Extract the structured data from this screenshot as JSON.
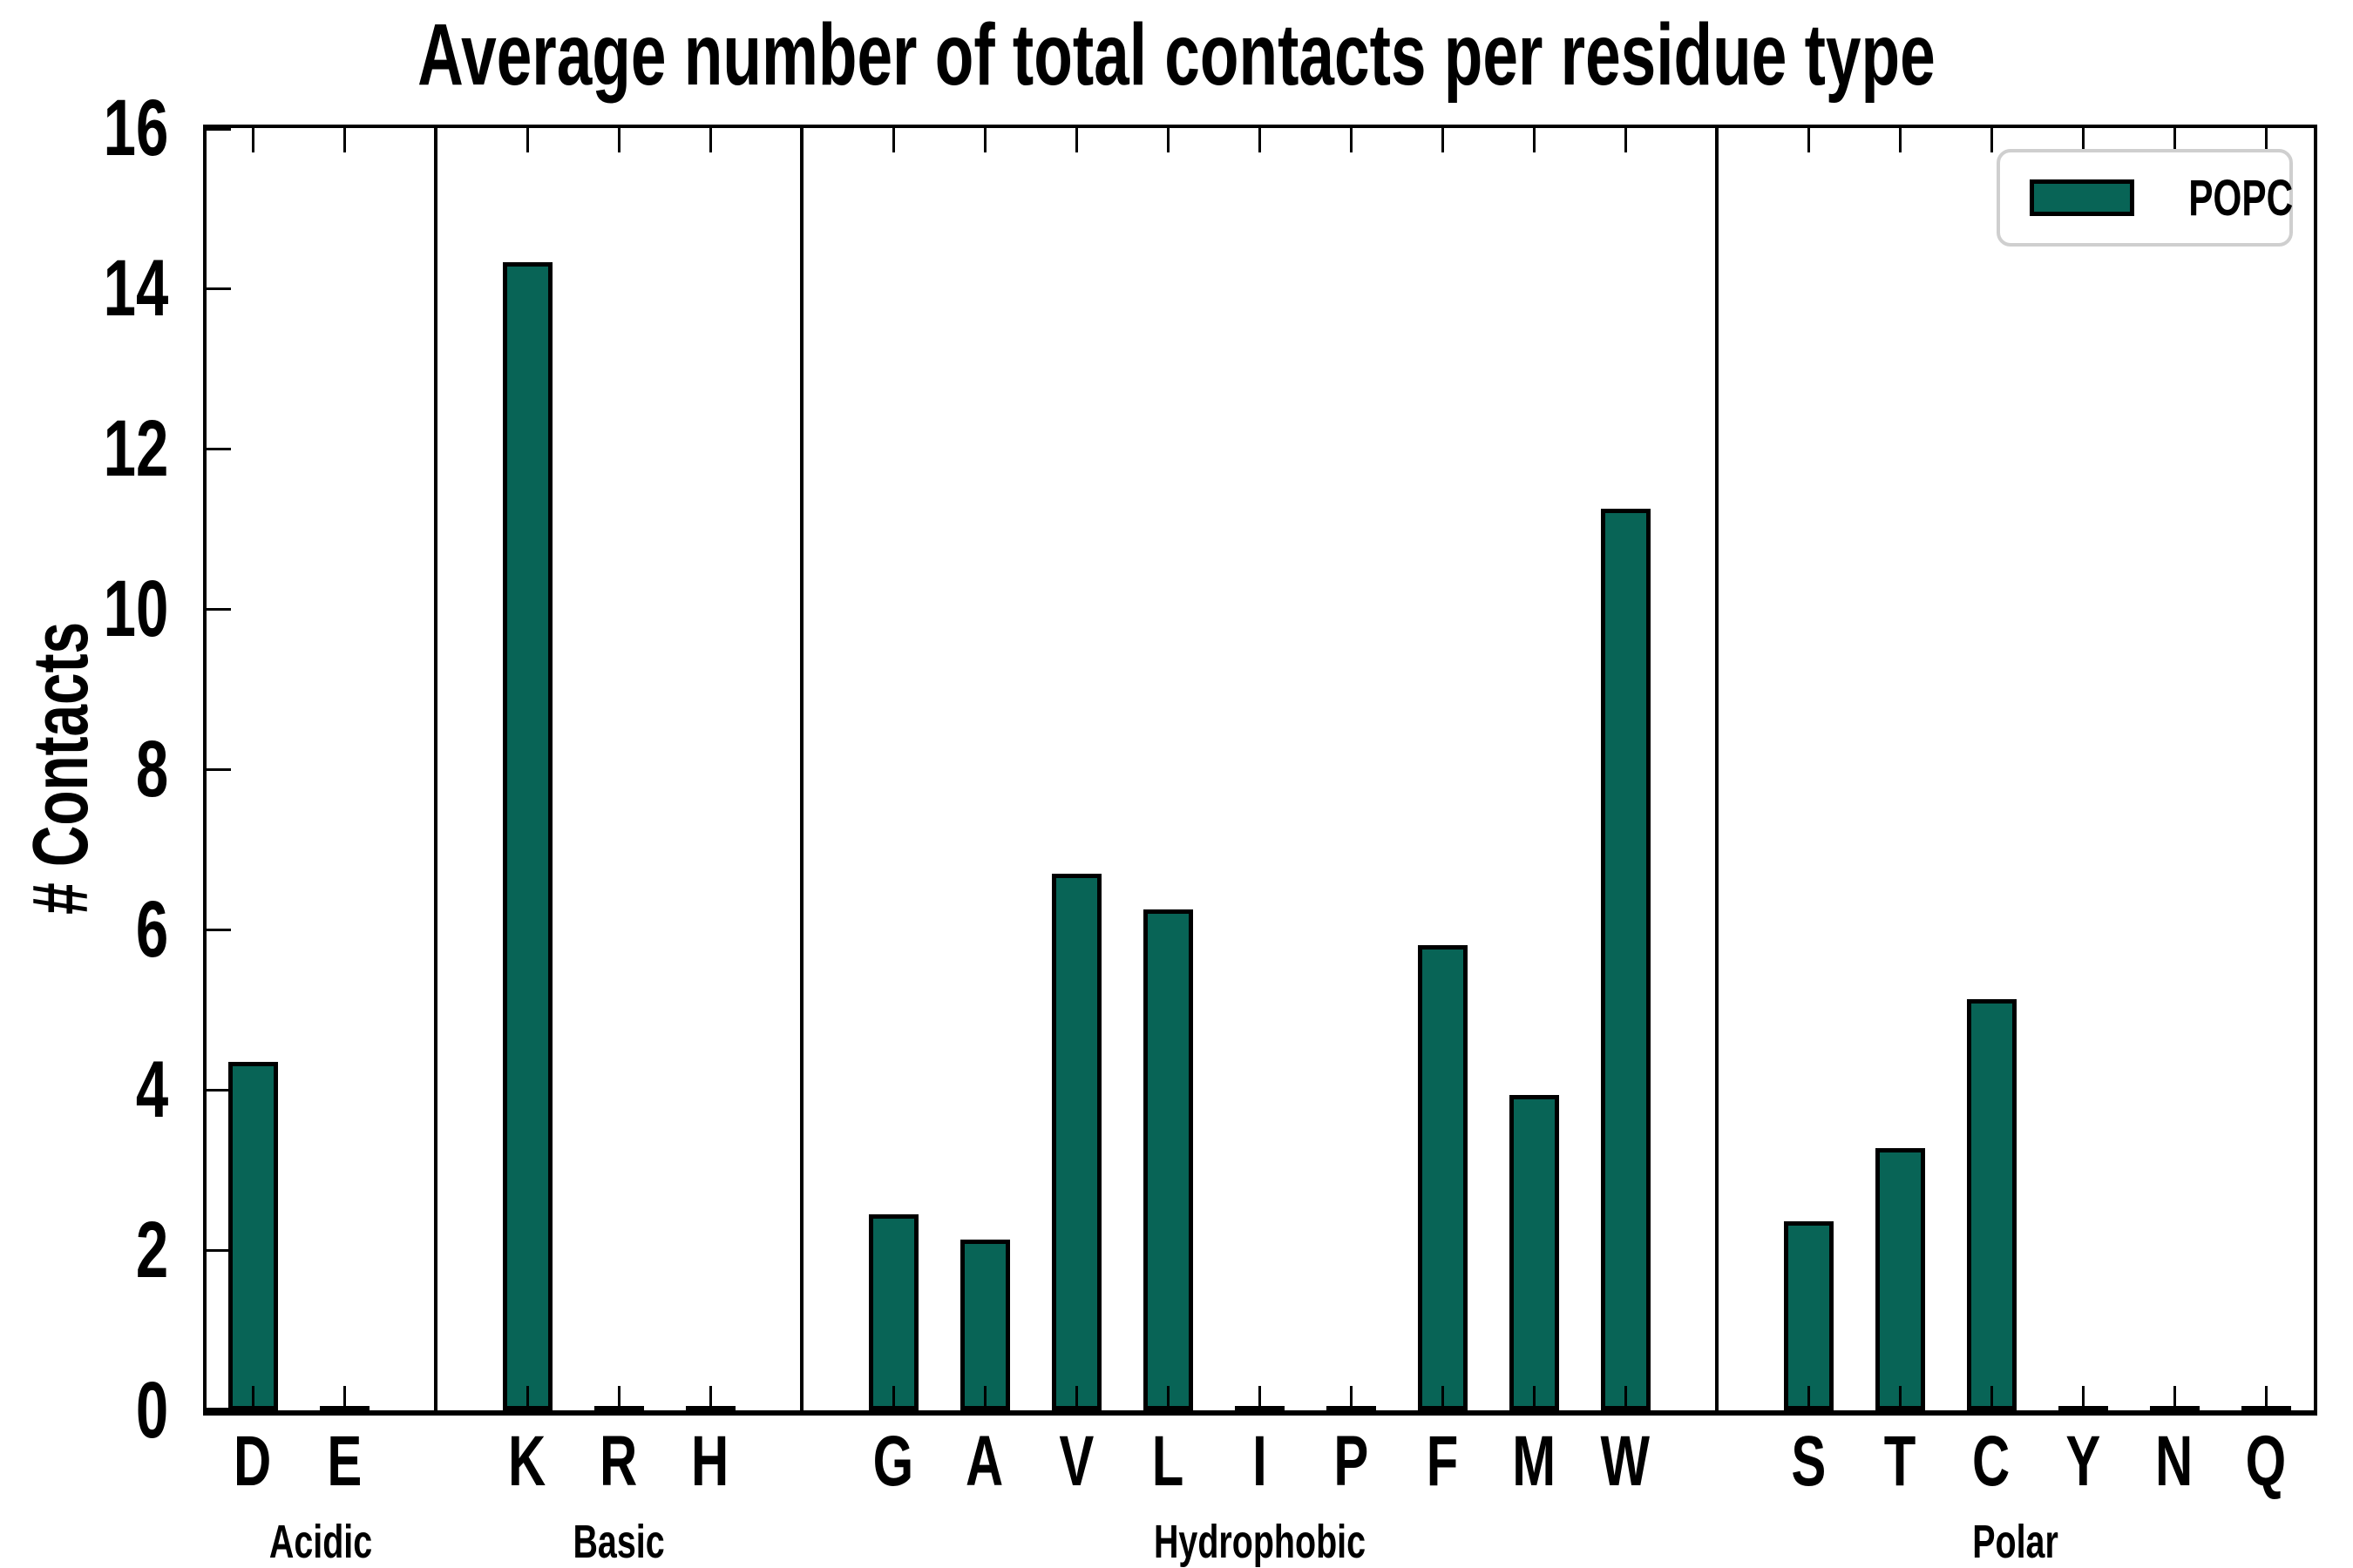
{
  "title": "Average number of total contacts per residue type",
  "ylabel": "# Contacts",
  "legend": {
    "label": "POPC",
    "swatch_color": "#086456"
  },
  "colors": {
    "bar_fill": "#086456",
    "bar_edge": "#000000",
    "axis": "#000000",
    "legend_border": "#cfcfcf",
    "background": "#ffffff"
  },
  "chart_data": {
    "type": "bar",
    "title": "Average number of total contacts per residue type",
    "xlabel": "",
    "ylabel": "# Contacts",
    "ylim": [
      0,
      16
    ],
    "yticks": [
      0,
      2,
      4,
      6,
      8,
      10,
      12,
      14,
      16
    ],
    "grid": false,
    "legend_position": "upper right",
    "legend_entries": [
      "POPC"
    ],
    "series_name": "POPC",
    "groups": [
      {
        "label": "Acidic",
        "categories": [
          "D",
          "E"
        ],
        "values": [
          4.35,
          0.05
        ]
      },
      {
        "label": "Basic",
        "categories": [
          "K",
          "R",
          "H"
        ],
        "values": [
          14.33,
          0.05,
          0.05
        ]
      },
      {
        "label": "Hydrophobic",
        "categories": [
          "G",
          "A",
          "V",
          "L",
          "I",
          "P",
          "F",
          "M",
          "W"
        ],
        "values": [
          2.45,
          2.13,
          6.7,
          6.25,
          0.04,
          0.05,
          5.8,
          3.93,
          11.25
        ]
      },
      {
        "label": "Polar",
        "categories": [
          "S",
          "T",
          "C",
          "Y",
          "N",
          "Q"
        ],
        "values": [
          2.36,
          3.27,
          5.13,
          0.04,
          0.04,
          0.04
        ]
      }
    ]
  }
}
